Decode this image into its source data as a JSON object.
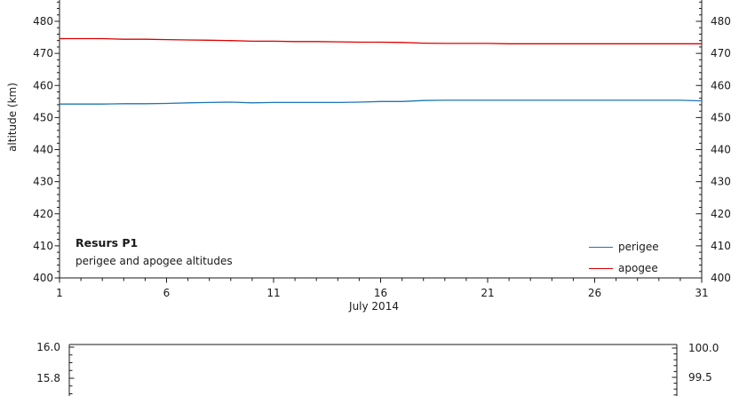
{
  "page": {
    "background": "#ffffff",
    "text_color": "#1a1a1a"
  },
  "chart_data": [
    {
      "type": "line",
      "title": "Resurs P1",
      "subtitle": "perigee and apogee altitudes",
      "xlabel": "July 2014",
      "ylabel": "altitude (km)",
      "x_range": [
        1,
        31
      ],
      "xticks": {
        "labeled": [
          1,
          6,
          11,
          16,
          21,
          26,
          31
        ],
        "minor_step": 1
      },
      "yaxis": {
        "unit": "km",
        "visible_min": 400,
        "visible_top": 486.6,
        "labeled_ticks": [
          400,
          410,
          420,
          430,
          440,
          450,
          460,
          470,
          480
        ],
        "minor_step": 2,
        "mirrored_right": true,
        "note_top_cropped": true
      },
      "grid": false,
      "legend_position": "lower-right",
      "series": [
        {
          "name": "perigee",
          "color": "#1f77b4",
          "values": [
            454.2,
            454.2,
            454.2,
            454.3,
            454.3,
            454.4,
            454.6,
            454.7,
            454.8,
            454.6,
            454.7,
            454.7,
            454.7,
            454.7,
            454.8,
            455.0,
            455.0,
            455.3,
            455.4,
            455.4,
            455.4,
            455.4,
            455.4,
            455.4,
            455.4,
            455.4,
            455.4,
            455.4,
            455.4,
            455.4,
            455.2
          ]
        },
        {
          "name": "apogee",
          "color": "#dc0000",
          "values": [
            474.6,
            474.6,
            474.6,
            474.4,
            474.4,
            474.3,
            474.2,
            474.1,
            474.0,
            473.8,
            473.8,
            473.7,
            473.7,
            473.6,
            473.5,
            473.5,
            473.4,
            473.2,
            473.1,
            473.1,
            473.1,
            473.0,
            473.0,
            473.0,
            473.0,
            473.0,
            473.0,
            473.0,
            473.0,
            473.0,
            473.0
          ]
        }
      ]
    },
    {
      "type": "line",
      "partially_visible": true,
      "left_axis": {
        "ticks": [
          {
            "label": "16.0",
            "value": 16.0
          },
          {
            "label": "15.8",
            "value": 15.8
          }
        ],
        "major_step": 0.2,
        "minor_step": 0.05
      },
      "right_axis": {
        "ticks": [
          {
            "label": "100.0",
            "value": 100.0
          },
          {
            "label": "99.5",
            "value": 99.5
          }
        ],
        "major_step": 0.5,
        "minor_step": 0.1
      },
      "series": []
    }
  ]
}
